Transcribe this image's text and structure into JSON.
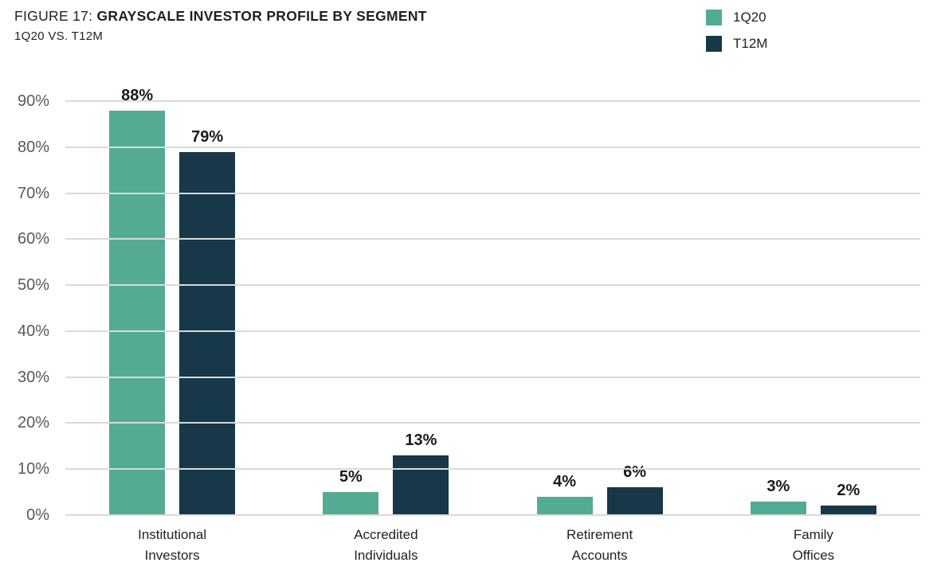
{
  "header": {
    "figure_label": "FIGURE 17:",
    "title_bold": "GRAYSCALE INVESTOR PROFILE BY SEGMENT",
    "subtitle": "1Q20 VS. T12M"
  },
  "legend": {
    "items": [
      {
        "label": "1Q20",
        "color": "#53AB94"
      },
      {
        "label": "T12M",
        "color": "#163848"
      }
    ]
  },
  "chart_data": {
    "type": "bar",
    "title": "FIGURE 17: GRAYSCALE INVESTOR PROFILE BY SEGMENT",
    "subtitle": "1Q20 VS. T12M",
    "categories": [
      "Institutional Investors",
      "Accredited Individuals",
      "Retirement Accounts",
      "Family Offices"
    ],
    "series": [
      {
        "name": "1Q20",
        "color": "#53AB94",
        "values": [
          88,
          5,
          4,
          3
        ]
      },
      {
        "name": "T12M",
        "color": "#163848",
        "values": [
          79,
          13,
          6,
          2
        ]
      }
    ],
    "value_suffix": "%",
    "data_labels": [
      "88%",
      "79%",
      "5%",
      "13%",
      "4%",
      "6%",
      "3%",
      "2%"
    ],
    "ylim": [
      0,
      90
    ],
    "y_tick_step": 10,
    "y_tick_labels": [
      "0%",
      "10%",
      "20%",
      "30%",
      "40%",
      "50%",
      "60%",
      "70%",
      "80%",
      "90%"
    ],
    "grid": true,
    "legend_position": "top-right"
  }
}
